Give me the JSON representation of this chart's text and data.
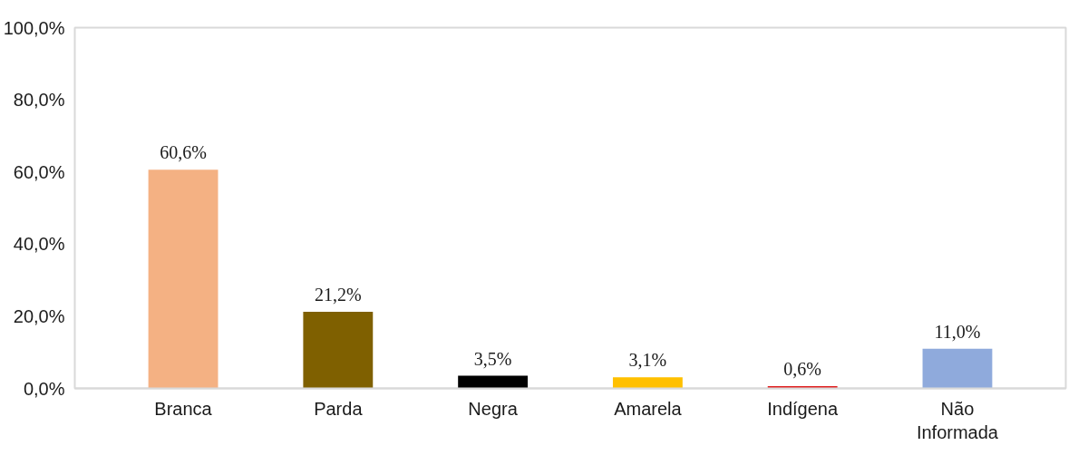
{
  "chart_data": {
    "type": "bar",
    "categories": [
      "Branca",
      "Parda",
      "Negra",
      "Amarela",
      "Indígena",
      "Não Informada"
    ],
    "values": [
      60.6,
      21.2,
      3.5,
      3.1,
      0.6,
      11.0
    ],
    "colors": [
      "#f4b183",
      "#7f6000",
      "#000000",
      "#ffc000",
      "#e02020",
      "#8faadc"
    ],
    "value_labels": [
      "60,6%",
      "21,2%",
      "3,5%",
      "3,1%",
      "0,6%",
      "11,0%"
    ],
    "ylim": [
      0,
      100
    ],
    "yticks": [
      {
        "value": 0,
        "label": "0,0%"
      },
      {
        "value": 20,
        "label": "20,0%"
      },
      {
        "value": 40,
        "label": "40,0%"
      },
      {
        "value": 60,
        "label": "60,0%"
      },
      {
        "value": 80,
        "label": "80,0%"
      },
      {
        "value": 100,
        "label": "100,0%"
      }
    ],
    "grid": false
  }
}
